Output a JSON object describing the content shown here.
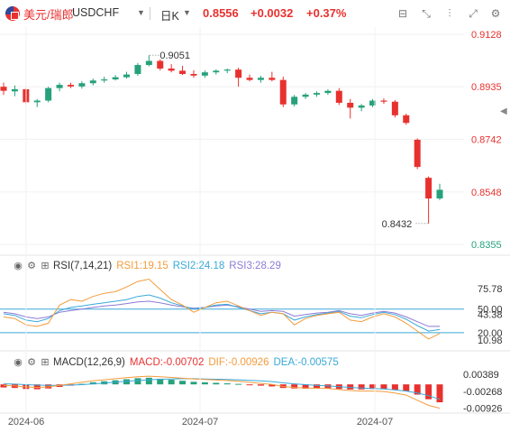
{
  "header": {
    "pair_name": "美元/瑞郎",
    "symbol": "USDCHF",
    "period": "日K",
    "price": "0.8556",
    "change": "+0.0032",
    "change_pct": "+0.37%",
    "tools": [
      "horizontal-line-icon",
      "fullscreen-icon",
      "candle-icon",
      "compare-icon",
      "settings-icon"
    ]
  },
  "colors": {
    "up": "#26a17b",
    "down": "#e8312f",
    "rsi1": "#f39c3c",
    "rsi2": "#3aa9d8",
    "rsi3": "#8e7bd6",
    "macd": "#e8312f",
    "dif": "#f39c3c",
    "dea": "#3aa9d8",
    "ref_line": "#3aa9d8"
  },
  "chart_data": [
    {
      "type": "candlestick",
      "title": "",
      "x_labels": [
        "2024-06",
        "2024-07",
        "2024-07"
      ],
      "y_ticks": [
        "0.9128",
        "0.8935",
        "0.8742",
        "0.8548",
        "0.8355"
      ],
      "ylim": [
        0.8355,
        0.9128
      ],
      "annotations": {
        "high": "0.9051",
        "low": "0.8432"
      },
      "series": [
        {
          "o": 0.8935,
          "h": 0.895,
          "l": 0.8905,
          "c": 0.892
        },
        {
          "o": 0.8918,
          "h": 0.894,
          "l": 0.89,
          "c": 0.8926
        },
        {
          "o": 0.8926,
          "h": 0.8932,
          "l": 0.887,
          "c": 0.8878
        },
        {
          "o": 0.8878,
          "h": 0.889,
          "l": 0.886,
          "c": 0.8884
        },
        {
          "o": 0.8884,
          "h": 0.8935,
          "l": 0.8878,
          "c": 0.893
        },
        {
          "o": 0.893,
          "h": 0.895,
          "l": 0.8918,
          "c": 0.8942
        },
        {
          "o": 0.8942,
          "h": 0.895,
          "l": 0.893,
          "c": 0.8936
        },
        {
          "o": 0.8936,
          "h": 0.8955,
          "l": 0.8928,
          "c": 0.8948
        },
        {
          "o": 0.8948,
          "h": 0.8965,
          "l": 0.894,
          "c": 0.8958
        },
        {
          "o": 0.8958,
          "h": 0.8972,
          "l": 0.895,
          "c": 0.8962
        },
        {
          "o": 0.8962,
          "h": 0.8978,
          "l": 0.8958,
          "c": 0.897
        },
        {
          "o": 0.897,
          "h": 0.899,
          "l": 0.8965,
          "c": 0.898
        },
        {
          "o": 0.8982,
          "h": 0.9022,
          "l": 0.8975,
          "c": 0.9015
        },
        {
          "o": 0.9015,
          "h": 0.9051,
          "l": 0.901,
          "c": 0.903
        },
        {
          "o": 0.903,
          "h": 0.9036,
          "l": 0.8995,
          "c": 0.9002
        },
        {
          "o": 0.9002,
          "h": 0.9018,
          "l": 0.8988,
          "c": 0.8994
        },
        {
          "o": 0.8994,
          "h": 0.9012,
          "l": 0.8978,
          "c": 0.8982
        },
        {
          "o": 0.8982,
          "h": 0.8996,
          "l": 0.8968,
          "c": 0.8976
        },
        {
          "o": 0.8976,
          "h": 0.8995,
          "l": 0.8968,
          "c": 0.8988
        },
        {
          "o": 0.8988,
          "h": 0.8999,
          "l": 0.898,
          "c": 0.8994
        },
        {
          "o": 0.8994,
          "h": 0.9002,
          "l": 0.8985,
          "c": 0.8998
        },
        {
          "o": 0.8998,
          "h": 0.9005,
          "l": 0.8935,
          "c": 0.8968
        },
        {
          "o": 0.8968,
          "h": 0.898,
          "l": 0.8955,
          "c": 0.896
        },
        {
          "o": 0.896,
          "h": 0.8975,
          "l": 0.895,
          "c": 0.8968
        },
        {
          "o": 0.8968,
          "h": 0.899,
          "l": 0.8955,
          "c": 0.896
        },
        {
          "o": 0.896,
          "h": 0.8972,
          "l": 0.886,
          "c": 0.887
        },
        {
          "o": 0.887,
          "h": 0.8905,
          "l": 0.8862,
          "c": 0.8898
        },
        {
          "o": 0.8898,
          "h": 0.8912,
          "l": 0.889,
          "c": 0.8906
        },
        {
          "o": 0.8906,
          "h": 0.8918,
          "l": 0.8898,
          "c": 0.8912
        },
        {
          "o": 0.8912,
          "h": 0.8925,
          "l": 0.8905,
          "c": 0.892
        },
        {
          "o": 0.892,
          "h": 0.893,
          "l": 0.8868,
          "c": 0.8876
        },
        {
          "o": 0.8876,
          "h": 0.889,
          "l": 0.8818,
          "c": 0.8858
        },
        {
          "o": 0.8858,
          "h": 0.8872,
          "l": 0.8845,
          "c": 0.8866
        },
        {
          "o": 0.8866,
          "h": 0.889,
          "l": 0.886,
          "c": 0.8884
        },
        {
          "o": 0.8884,
          "h": 0.8892,
          "l": 0.8872,
          "c": 0.888
        },
        {
          "o": 0.888,
          "h": 0.8886,
          "l": 0.8822,
          "c": 0.883
        },
        {
          "o": 0.883,
          "h": 0.8836,
          "l": 0.8795,
          "c": 0.8802
        },
        {
          "o": 0.874,
          "h": 0.8745,
          "l": 0.8632,
          "c": 0.864
        },
        {
          "o": 0.86,
          "h": 0.8605,
          "l": 0.8432,
          "c": 0.8524
        },
        {
          "o": 0.8524,
          "h": 0.8578,
          "l": 0.8518,
          "c": 0.8556
        }
      ]
    },
    {
      "type": "line",
      "name": "RSI(7,14,21)",
      "legend": {
        "title": "RSI(7,14,21)",
        "rsi1": "RSI1:19.15",
        "rsi2": "RSI2:24.18",
        "rsi3": "RSI3:28.29"
      },
      "y_ticks": [
        "75.78",
        "50.00",
        "43.38",
        "20.00",
        "10.98"
      ],
      "ylim": [
        5,
        92
      ],
      "ref_lines": [
        50,
        20
      ],
      "rsi1": [
        40,
        38,
        30,
        28,
        32,
        55,
        62,
        60,
        66,
        70,
        72,
        78,
        85,
        88,
        75,
        62,
        55,
        46,
        52,
        58,
        60,
        54,
        48,
        42,
        46,
        44,
        30,
        38,
        42,
        44,
        46,
        36,
        34,
        40,
        44,
        40,
        32,
        22,
        12,
        19
      ],
      "rsi2": [
        44,
        42,
        36,
        34,
        38,
        48,
        52,
        54,
        56,
        58,
        60,
        62,
        66,
        68,
        64,
        58,
        54,
        50,
        52,
        55,
        56,
        52,
        48,
        44,
        46,
        44,
        36,
        40,
        43,
        45,
        47,
        41,
        39,
        43,
        46,
        43,
        37,
        29,
        22,
        24
      ],
      "rsi3": [
        46,
        44,
        40,
        38,
        40,
        46,
        48,
        50,
        52,
        54,
        55,
        57,
        59,
        60,
        58,
        55,
        53,
        51,
        52,
        54,
        55,
        53,
        50,
        47,
        48,
        47,
        41,
        43,
        45,
        46,
        48,
        44,
        42,
        45,
        47,
        45,
        40,
        34,
        28,
        28
      ]
    },
    {
      "type": "bar",
      "name": "MACD(12,26,9)",
      "legend": {
        "title": "MACD(12,26,9)",
        "macd": "MACD:-0.00702",
        "dif": "DIF:-0.00926",
        "dea": "DEA:-0.00575"
      },
      "y_ticks": [
        "0.00389",
        "-0.00268",
        "-0.00926"
      ],
      "ylim": [
        -0.0105,
        0.005
      ],
      "macd": [
        -0.0012,
        -0.0014,
        -0.0018,
        -0.0019,
        -0.0016,
        -0.001,
        -0.0005,
        0.0002,
        0.0008,
        0.0012,
        0.0016,
        0.002,
        0.0024,
        0.0026,
        0.0022,
        0.0018,
        0.0014,
        0.001,
        0.0008,
        0.0006,
        0.0004,
        0.0002,
        -0.0002,
        -0.0005,
        -0.0008,
        -0.0014,
        -0.0016,
        -0.0017,
        -0.0016,
        -0.0015,
        -0.0018,
        -0.002,
        -0.002,
        -0.0018,
        -0.0018,
        -0.0022,
        -0.0026,
        -0.004,
        -0.0058,
        -0.007
      ],
      "dif": [
        -0.0004,
        -0.0006,
        -0.001,
        -0.0012,
        -0.001,
        -0.0004,
        0.0002,
        0.0008,
        0.0014,
        0.0018,
        0.0022,
        0.0026,
        0.003,
        0.0032,
        0.003,
        0.0027,
        0.0024,
        0.0021,
        0.0019,
        0.0017,
        0.0015,
        0.0012,
        0.0008,
        0.0004,
        0.0,
        -0.0008,
        -0.0012,
        -0.0014,
        -0.0015,
        -0.0016,
        -0.002,
        -0.0024,
        -0.0026,
        -0.0026,
        -0.0028,
        -0.0034,
        -0.0042,
        -0.0062,
        -0.0082,
        -0.0093
      ],
      "dea": [
        0.0002,
        0.0001,
        -0.0001,
        -0.0003,
        -0.0004,
        -0.0004,
        -0.0003,
        -0.0001,
        0.0002,
        0.0005,
        0.0009,
        0.0012,
        0.0015,
        0.0018,
        0.002,
        0.0021,
        0.0022,
        0.0022,
        0.0021,
        0.002,
        0.0019,
        0.0018,
        0.0016,
        0.0014,
        0.0011,
        0.0006,
        0.0002,
        -0.0001,
        -0.0004,
        -0.0006,
        -0.0009,
        -0.0012,
        -0.0014,
        -0.0016,
        -0.0018,
        -0.0022,
        -0.0026,
        -0.0034,
        -0.0044,
        -0.0058
      ]
    }
  ]
}
